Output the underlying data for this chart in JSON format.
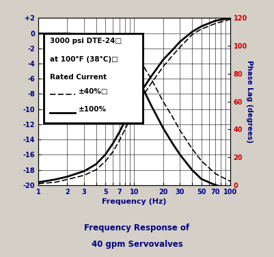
{
  "title_line1": "Frequency Response of",
  "title_line2": "40 gpm Servovalves",
  "xlabel": "Frequency (Hz)",
  "ylabel_right": "Phase Lag (degrees)",
  "bg_color": "#d4d0c8",
  "plot_bg_color": "#ffffff",
  "x_ticks": [
    1,
    2,
    3,
    5,
    7,
    10,
    20,
    30,
    50,
    70,
    100
  ],
  "x_tick_labels": [
    "1",
    "2",
    "3",
    "5",
    "7",
    "10",
    "20",
    "30",
    "50",
    "70",
    "100"
  ],
  "ylim_left": [
    -20,
    2
  ],
  "yticks_left": [
    2,
    0,
    -2,
    -4,
    -6,
    -8,
    -10,
    -12,
    -14,
    -16,
    -18,
    -20
  ],
  "ytick_labels_left": [
    "+2",
    "0",
    "-2",
    "-4",
    "-6",
    "-8",
    "-10",
    "-12",
    "-14",
    "-16",
    "-18",
    "-20"
  ],
  "ylim_right": [
    0,
    120
  ],
  "yticks_right": [
    0,
    20,
    40,
    60,
    80,
    100,
    120
  ],
  "legend_text1": "3000 psi DTE-24□",
  "legend_text2": "at 100°F (38°C)□",
  "legend_text3": "Rated Current",
  "legend_dashed_label": "±40%□",
  "legend_solid_label": "±100%",
  "text_color": "#000080",
  "right_tick_color": "#cc0000",
  "mag_100_x": [
    1,
    1.5,
    2,
    3,
    4,
    5,
    6,
    7,
    8,
    10,
    12,
    15,
    20,
    25,
    30,
    40,
    50,
    70,
    100
  ],
  "mag_100_y": [
    -0.05,
    -0.05,
    -0.05,
    -0.1,
    -0.15,
    -0.4,
    -1.0,
    -1.8,
    -2.8,
    -5.0,
    -7.0,
    -9.5,
    -12.5,
    -14.5,
    -16.0,
    -18.0,
    -19.2,
    -20.0,
    -20.5
  ],
  "mag_40_x": [
    1,
    1.5,
    2,
    3,
    4,
    5,
    6,
    7,
    8,
    10,
    12,
    15,
    20,
    25,
    30,
    40,
    50,
    70,
    100
  ],
  "mag_40_y": [
    -0.02,
    -0.02,
    -0.02,
    -0.05,
    -0.08,
    -0.15,
    -0.35,
    -0.7,
    -1.2,
    -2.5,
    -4.0,
    -6.0,
    -9.0,
    -11.0,
    -12.8,
    -15.2,
    -16.8,
    -18.5,
    -19.5
  ],
  "phase_100_x": [
    1,
    1.5,
    2,
    3,
    4,
    5,
    6,
    7,
    8,
    10,
    12,
    15,
    20,
    25,
    30,
    40,
    50,
    70,
    100
  ],
  "phase_100_y": [
    2,
    4,
    6,
    10,
    15,
    22,
    30,
    38,
    46,
    58,
    68,
    78,
    90,
    97,
    103,
    110,
    114,
    118,
    120
  ],
  "phase_40_x": [
    1,
    1.5,
    2,
    3,
    4,
    5,
    6,
    7,
    8,
    10,
    12,
    15,
    20,
    25,
    30,
    40,
    50,
    70,
    100
  ],
  "phase_40_y": [
    1,
    2,
    4,
    7,
    11,
    17,
    24,
    32,
    40,
    53,
    63,
    73,
    85,
    93,
    99,
    108,
    112,
    116,
    119
  ]
}
